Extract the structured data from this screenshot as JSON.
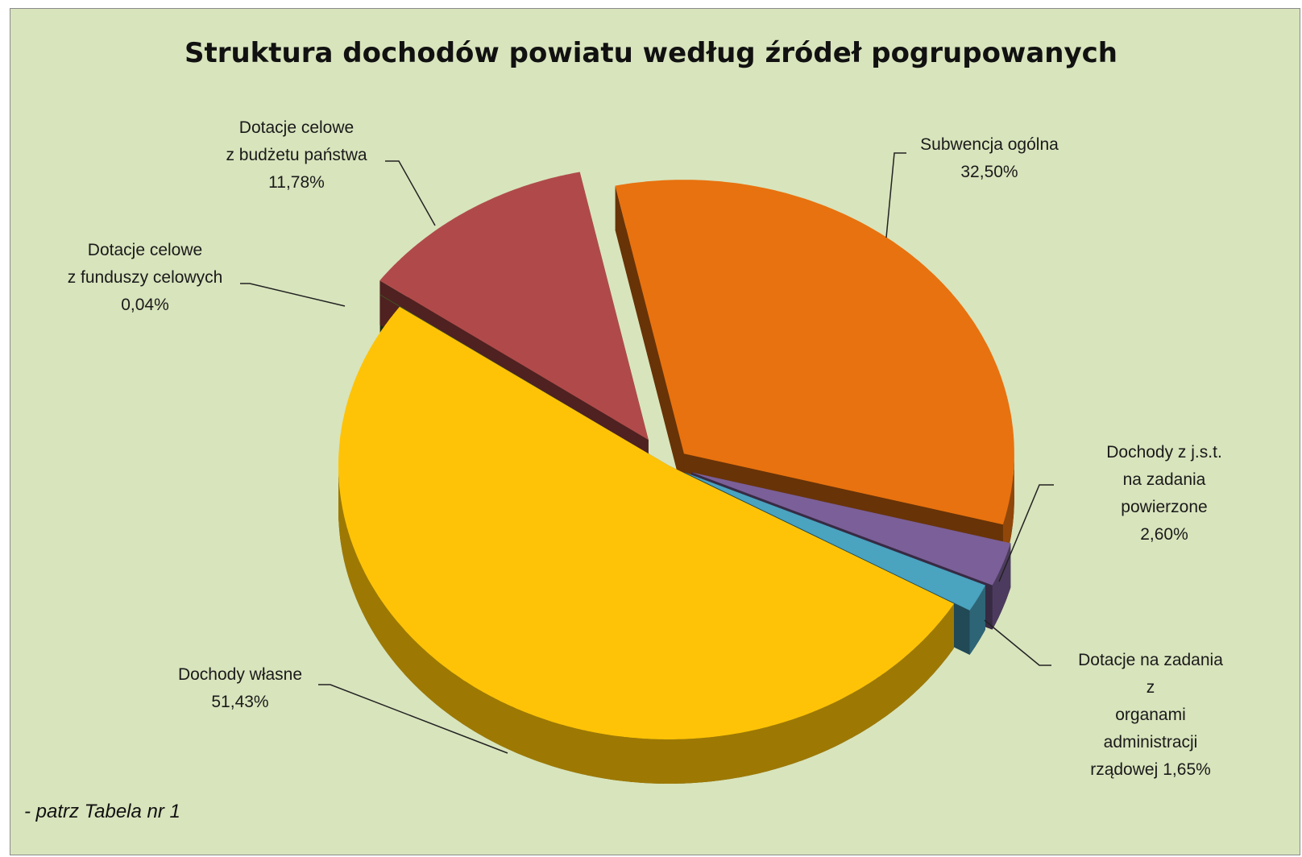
{
  "chart_data": {
    "type": "pie",
    "title": "Struktura dochodów powiatu według źródeł pogrupowanych",
    "categories": [
      "Subwencja ogólna",
      "Dochody z j.s.t.\nna zadania powierzone",
      "Dotacje na zadania z\norganami administracji\nrządowej",
      "Dochody własne",
      "Dotacje celowe\nz funduszy celowych",
      "Dotacje celowe\nz budżetu państwa"
    ],
    "values": [
      32.5,
      2.6,
      1.65,
      51.43,
      0.04,
      11.78
    ],
    "value_labels": [
      "32,50%",
      "2,60%",
      "1,65%",
      "51,43%",
      "0,04%",
      "11,78%"
    ],
    "colors": [
      "#e8720f",
      "#7b5f98",
      "#4aa3bf",
      "#fec307",
      "#3e5a22",
      "#b04a4a"
    ],
    "footnote": "- patrz Tabela nr 1"
  }
}
